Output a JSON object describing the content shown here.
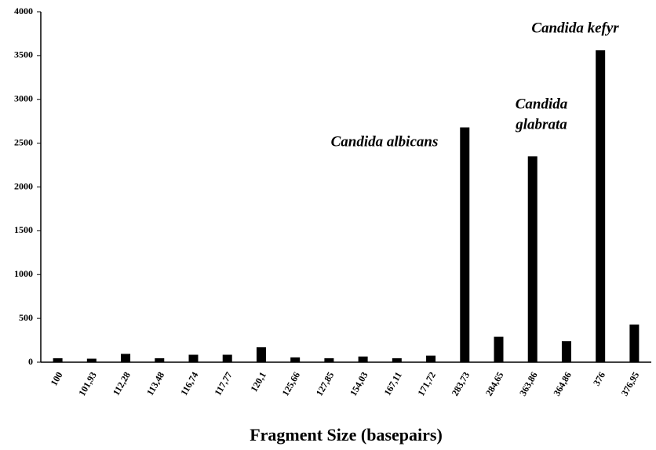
{
  "chart_data": {
    "type": "bar",
    "x_label": "Fragment Size (basepairs)",
    "categories": [
      "100",
      "101,93",
      "112,28",
      "113,48",
      "116,74",
      "117,77",
      "120,1",
      "125,66",
      "127,85",
      "154,03",
      "167,11",
      "171,72",
      "283,73",
      "284,65",
      "363,86",
      "364,86",
      "376",
      "376,95"
    ],
    "values": [
      45,
      40,
      95,
      45,
      85,
      85,
      170,
      55,
      45,
      65,
      45,
      75,
      2680,
      290,
      2350,
      240,
      3560,
      430
    ],
    "color": "#000000",
    "ylim": [
      0,
      4000
    ],
    "yticks": [
      0,
      500,
      1000,
      1500,
      2000,
      2500,
      3000,
      3500,
      4000
    ],
    "grid": false,
    "annotations": [
      {
        "lines": [
          "Candida albicans"
        ]
      },
      {
        "lines": [
          "Candida",
          "glabrata"
        ]
      },
      {
        "lines": [
          "Candida kefyr"
        ]
      }
    ]
  }
}
